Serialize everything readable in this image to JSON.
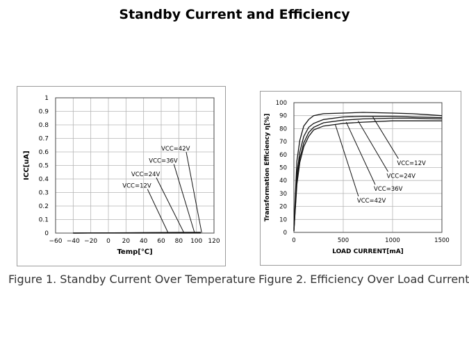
{
  "page_title": "Standby Current and Efficiency",
  "captions": {
    "fig1": "Figure 1. Standby Current Over Temperature",
    "fig2": "Figure 2. Efficiency Over Load Current"
  },
  "chart_data": [
    {
      "type": "line",
      "xlabel": "Temp[℃]",
      "ylabel": "ICC[uA]",
      "xlim": [
        -60,
        120
      ],
      "ylim": [
        0,
        1
      ],
      "xticks": [
        -60,
        -40,
        -20,
        0,
        20,
        40,
        60,
        80,
        100,
        120
      ],
      "xtick_labels": [
        "−60",
        "−40",
        "−20",
        "0",
        "20",
        "40",
        "60",
        "80",
        "100",
        "120"
      ],
      "yticks": [
        0,
        0.1,
        0.2,
        0.3,
        0.4,
        0.5,
        0.6,
        0.7,
        0.8,
        0.9,
        1
      ],
      "ytick_labels": [
        "0",
        "0.1",
        "0.2",
        "0.3",
        "0.4",
        "0.5",
        "0.6",
        "0.7",
        "0.8",
        "0.9",
        "1"
      ],
      "grid": true,
      "series": [
        {
          "name": "VCC=12V",
          "x": [
            -40,
            105
          ],
          "y": [
            0,
            0
          ]
        },
        {
          "name": "VCC=24V",
          "x": [
            -40,
            105
          ],
          "y": [
            0,
            0.002
          ]
        },
        {
          "name": "VCC=36V",
          "x": [
            -40,
            105
          ],
          "y": [
            0,
            0.004
          ]
        },
        {
          "name": "VCC=42V",
          "x": [
            -40,
            105
          ],
          "y": [
            0,
            0.006
          ]
        }
      ],
      "annotations": [
        {
          "label": "VCC=12V",
          "x": 16,
          "y": 0.335,
          "arrow_to": [
            68,
            0.0
          ]
        },
        {
          "label": "VCC=24V",
          "x": 26,
          "y": 0.42,
          "arrow_to": [
            86,
            0.0
          ]
        },
        {
          "label": "VCC=36V",
          "x": 46,
          "y": 0.52,
          "arrow_to": [
            98,
            0.0
          ]
        },
        {
          "label": "VCC=42V",
          "x": 60,
          "y": 0.61,
          "arrow_to": [
            106,
            0.003
          ]
        }
      ]
    },
    {
      "type": "line",
      "xlabel": "LOAD CURRENT[mA]",
      "ylabel": "Transformation Efficiency η[%]",
      "xlim": [
        0,
        1500
      ],
      "ylim": [
        0,
        100
      ],
      "xticks": [
        0,
        500,
        1000,
        1500
      ],
      "xtick_labels": [
        "0",
        "500",
        "1000",
        "1500"
      ],
      "yticks": [
        0,
        10,
        20,
        30,
        40,
        50,
        60,
        70,
        80,
        90,
        100
      ],
      "ytick_labels": [
        "0",
        "10",
        "20",
        "30",
        "40",
        "50",
        "60",
        "70",
        "80",
        "90",
        "100"
      ],
      "grid": true,
      "series": [
        {
          "name": "VCC=12V",
          "x": [
            0,
            30,
            60,
            100,
            150,
            200,
            300,
            500,
            700,
            1000,
            1200,
            1500
          ],
          "y": [
            3,
            55,
            71,
            82,
            87,
            90,
            91.5,
            92,
            92.5,
            92,
            91.5,
            90
          ]
        },
        {
          "name": "VCC=24V",
          "x": [
            0,
            30,
            60,
            100,
            150,
            200,
            300,
            500,
            700,
            1000,
            1200,
            1500
          ],
          "y": [
            2,
            45,
            62,
            74,
            81,
            84,
            87,
            89,
            89.5,
            89.5,
            89,
            88.5
          ]
        },
        {
          "name": "VCC=36V",
          "x": [
            0,
            30,
            60,
            100,
            150,
            200,
            300,
            500,
            700,
            1000,
            1200,
            1500
          ],
          "y": [
            1,
            40,
            57,
            69,
            77,
            81,
            84.5,
            86.5,
            87.5,
            88,
            88,
            87.5
          ]
        },
        {
          "name": "VCC=42V",
          "x": [
            0,
            30,
            60,
            100,
            150,
            200,
            300,
            500,
            700,
            1000,
            1200,
            1500
          ],
          "y": [
            1,
            37,
            54,
            66,
            74,
            79,
            82,
            84,
            85,
            86,
            86,
            86
          ]
        }
      ],
      "annotations": [
        {
          "label": "VCC=12V",
          "x": 1045,
          "y": 52,
          "arrow_to": [
            800,
            89
          ]
        },
        {
          "label": "VCC=24V",
          "x": 940,
          "y": 42,
          "arrow_to": [
            650,
            86
          ]
        },
        {
          "label": "VCC=36V",
          "x": 810,
          "y": 32,
          "arrow_to": [
            530,
            85
          ]
        },
        {
          "label": "VCC=42V",
          "x": 640,
          "y": 23,
          "arrow_to": [
            420,
            83
          ]
        }
      ]
    }
  ]
}
